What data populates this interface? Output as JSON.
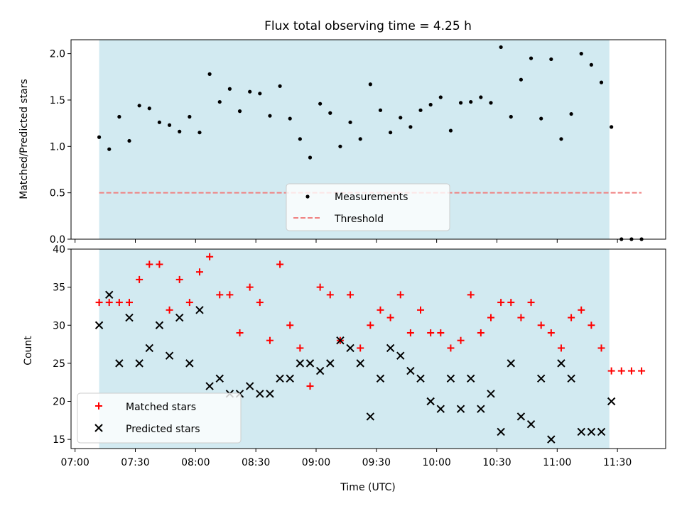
{
  "chart_data": [
    {
      "type": "scatter",
      "title": "Flux total observing time = 4.25 h",
      "xlabel": "",
      "ylabel": "Matched/Predicted stars",
      "ylim": [
        0,
        2.15
      ],
      "yticks": [
        "0.0",
        "0.5",
        "1.0",
        "1.5",
        "2.0"
      ],
      "shaded_interval": [
        "07:12",
        "11:26"
      ],
      "shade_color": "#add8e6",
      "grid": false,
      "legend_position": "lower-center",
      "series": [
        {
          "name": "Measurements",
          "marker": "dot",
          "color": "#000000",
          "points": [
            [
              "07:12",
              1.1
            ],
            [
              "07:17",
              0.97
            ],
            [
              "07:22",
              1.32
            ],
            [
              "07:27",
              1.06
            ],
            [
              "07:32",
              1.44
            ],
            [
              "07:37",
              1.41
            ],
            [
              "07:42",
              1.26
            ],
            [
              "07:47",
              1.23
            ],
            [
              "07:52",
              1.16
            ],
            [
              "07:57",
              1.32
            ],
            [
              "08:02",
              1.15
            ],
            [
              "08:07",
              1.78
            ],
            [
              "08:12",
              1.48
            ],
            [
              "08:17",
              1.62
            ],
            [
              "08:22",
              1.38
            ],
            [
              "08:27",
              1.59
            ],
            [
              "08:32",
              1.57
            ],
            [
              "08:37",
              1.33
            ],
            [
              "08:42",
              1.65
            ],
            [
              "08:47",
              1.3
            ],
            [
              "08:52",
              1.08
            ],
            [
              "08:57",
              0.88
            ],
            [
              "09:02",
              1.46
            ],
            [
              "09:07",
              1.36
            ],
            [
              "09:12",
              1.0
            ],
            [
              "09:17",
              1.26
            ],
            [
              "09:22",
              1.08
            ],
            [
              "09:27",
              1.67
            ],
            [
              "09:32",
              1.39
            ],
            [
              "09:37",
              1.15
            ],
            [
              "09:42",
              1.31
            ],
            [
              "09:47",
              1.21
            ],
            [
              "09:52",
              1.39
            ],
            [
              "09:57",
              1.45
            ],
            [
              "10:02",
              1.53
            ],
            [
              "10:07",
              1.17
            ],
            [
              "10:12",
              1.47
            ],
            [
              "10:17",
              1.48
            ],
            [
              "10:22",
              1.53
            ],
            [
              "10:27",
              1.47
            ],
            [
              "10:32",
              2.07
            ],
            [
              "10:37",
              1.32
            ],
            [
              "10:42",
              1.72
            ],
            [
              "10:47",
              1.95
            ],
            [
              "10:52",
              1.3
            ],
            [
              "10:57",
              1.94
            ],
            [
              "11:02",
              1.08
            ],
            [
              "11:07",
              1.35
            ],
            [
              "11:12",
              2.0
            ],
            [
              "11:17",
              1.88
            ],
            [
              "11:22",
              1.69
            ],
            [
              "11:27",
              1.21
            ],
            [
              "11:32",
              0.0
            ],
            [
              "11:37",
              0.0
            ],
            [
              "11:42",
              0.0
            ]
          ]
        },
        {
          "name": "Threshold",
          "line_style": "dashed",
          "color": "#f08080",
          "points": [
            [
              "07:12",
              0.5
            ],
            [
              "11:42",
              0.5
            ]
          ]
        }
      ]
    },
    {
      "type": "scatter",
      "title": "",
      "xlabel": "Time (UTC)",
      "ylabel": "Count",
      "ylim": [
        13.8,
        40
      ],
      "yticks": [
        "15",
        "20",
        "25",
        "30",
        "35",
        "40"
      ],
      "xticks": [
        "07:00",
        "07:30",
        "08:00",
        "08:30",
        "09:00",
        "09:30",
        "10:00",
        "10:30",
        "11:00",
        "11:30"
      ],
      "shaded_interval": [
        "07:12",
        "11:26"
      ],
      "shade_color": "#add8e6",
      "grid": false,
      "legend_position": "lower-left",
      "series": [
        {
          "name": "Matched stars",
          "marker": "plus",
          "color": "#ff0000",
          "points": [
            [
              "07:12",
              33
            ],
            [
              "07:17",
              33
            ],
            [
              "07:22",
              33
            ],
            [
              "07:27",
              33
            ],
            [
              "07:32",
              36
            ],
            [
              "07:37",
              38
            ],
            [
              "07:42",
              38
            ],
            [
              "07:47",
              32
            ],
            [
              "07:52",
              36
            ],
            [
              "07:57",
              33
            ],
            [
              "08:02",
              37
            ],
            [
              "08:07",
              39
            ],
            [
              "08:12",
              34
            ],
            [
              "08:17",
              34
            ],
            [
              "08:22",
              29
            ],
            [
              "08:27",
              35
            ],
            [
              "08:32",
              33
            ],
            [
              "08:37",
              28
            ],
            [
              "08:42",
              38
            ],
            [
              "08:47",
              30
            ],
            [
              "08:52",
              27
            ],
            [
              "08:57",
              22
            ],
            [
              "09:02",
              35
            ],
            [
              "09:07",
              34
            ],
            [
              "09:12",
              28
            ],
            [
              "09:17",
              34
            ],
            [
              "09:22",
              27
            ],
            [
              "09:27",
              30
            ],
            [
              "09:32",
              32
            ],
            [
              "09:37",
              31
            ],
            [
              "09:42",
              34
            ],
            [
              "09:47",
              29
            ],
            [
              "09:52",
              32
            ],
            [
              "09:57",
              29
            ],
            [
              "10:02",
              29
            ],
            [
              "10:07",
              27
            ],
            [
              "10:12",
              28
            ],
            [
              "10:17",
              34
            ],
            [
              "10:22",
              29
            ],
            [
              "10:27",
              31
            ],
            [
              "10:32",
              33
            ],
            [
              "10:37",
              33
            ],
            [
              "10:42",
              31
            ],
            [
              "10:47",
              33
            ],
            [
              "10:52",
              30
            ],
            [
              "10:57",
              29
            ],
            [
              "11:02",
              27
            ],
            [
              "11:07",
              31
            ],
            [
              "11:12",
              32
            ],
            [
              "11:17",
              30
            ],
            [
              "11:22",
              27
            ],
            [
              "11:27",
              24
            ],
            [
              "11:32",
              24
            ],
            [
              "11:37",
              24
            ],
            [
              "11:42",
              24
            ]
          ]
        },
        {
          "name": "Predicted stars",
          "marker": "x",
          "color": "#000000",
          "points": [
            [
              "07:12",
              30
            ],
            [
              "07:17",
              34
            ],
            [
              "07:22",
              25
            ],
            [
              "07:27",
              31
            ],
            [
              "07:32",
              25
            ],
            [
              "07:37",
              27
            ],
            [
              "07:42",
              30
            ],
            [
              "07:47",
              26
            ],
            [
              "07:52",
              31
            ],
            [
              "07:57",
              25
            ],
            [
              "08:02",
              32
            ],
            [
              "08:07",
              22
            ],
            [
              "08:12",
              23
            ],
            [
              "08:17",
              21
            ],
            [
              "08:22",
              21
            ],
            [
              "08:27",
              22
            ],
            [
              "08:32",
              21
            ],
            [
              "08:37",
              21
            ],
            [
              "08:42",
              23
            ],
            [
              "08:47",
              23
            ],
            [
              "08:52",
              25
            ],
            [
              "08:57",
              25
            ],
            [
              "09:02",
              24
            ],
            [
              "09:07",
              25
            ],
            [
              "09:12",
              28
            ],
            [
              "09:17",
              27
            ],
            [
              "09:22",
              25
            ],
            [
              "09:27",
              18
            ],
            [
              "09:32",
              23
            ],
            [
              "09:37",
              27
            ],
            [
              "09:42",
              26
            ],
            [
              "09:47",
              24
            ],
            [
              "09:52",
              23
            ],
            [
              "09:57",
              20
            ],
            [
              "10:02",
              19
            ],
            [
              "10:07",
              23
            ],
            [
              "10:12",
              19
            ],
            [
              "10:17",
              23
            ],
            [
              "10:22",
              19
            ],
            [
              "10:27",
              21
            ],
            [
              "10:32",
              16
            ],
            [
              "10:37",
              25
            ],
            [
              "10:42",
              18
            ],
            [
              "10:47",
              17
            ],
            [
              "10:52",
              23
            ],
            [
              "10:57",
              15
            ],
            [
              "11:02",
              25
            ],
            [
              "11:07",
              23
            ],
            [
              "11:12",
              16
            ],
            [
              "11:17",
              16
            ],
            [
              "11:22",
              16
            ],
            [
              "11:27",
              20
            ]
          ]
        }
      ]
    }
  ]
}
